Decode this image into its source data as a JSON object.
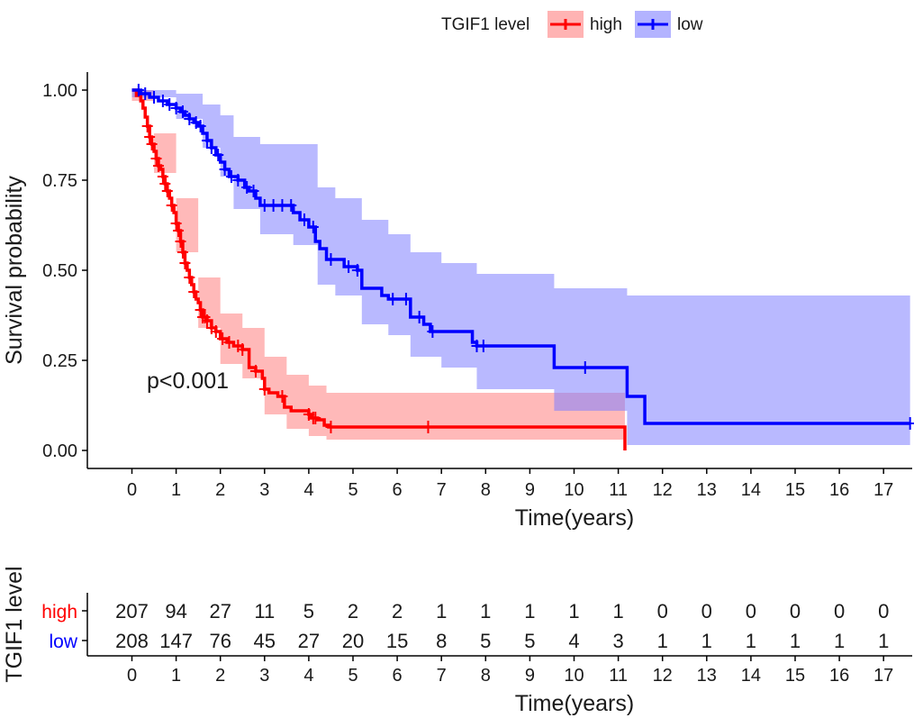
{
  "legend": {
    "title": "TGIF1 level",
    "items": [
      {
        "label": "high",
        "color": "#ff0000"
      },
      {
        "label": "low",
        "color": "#0000ff"
      }
    ]
  },
  "annotation": "p<0.001",
  "chart_data": [
    {
      "type": "line",
      "subtype": "kaplan-meier",
      "xlabel": "Time(years)",
      "ylabel": "Survival probability",
      "xlim": [
        0,
        17.6
      ],
      "ylim": [
        0,
        1
      ],
      "x_ticks": [
        0,
        1,
        2,
        3,
        4,
        5,
        6,
        7,
        8,
        9,
        10,
        11,
        12,
        13,
        14,
        15,
        16,
        17
      ],
      "y_ticks": [
        "0.00",
        "0.25",
        "0.50",
        "0.75",
        "1.00"
      ],
      "y_tick_values": [
        0,
        0.25,
        0.5,
        0.75,
        1.0
      ],
      "grid": false,
      "legend_position": "top",
      "series": [
        {
          "name": "high",
          "color": "#ff0000",
          "band_color": "#ff8080",
          "steps": [
            [
              0,
              1.0
            ],
            [
              0.1,
              0.985
            ],
            [
              0.2,
              0.97
            ],
            [
              0.25,
              0.95
            ],
            [
              0.3,
              0.925
            ],
            [
              0.35,
              0.9
            ],
            [
              0.4,
              0.87
            ],
            [
              0.45,
              0.85
            ],
            [
              0.5,
              0.83
            ],
            [
              0.55,
              0.81
            ],
            [
              0.6,
              0.79
            ],
            [
              0.65,
              0.78
            ],
            [
              0.7,
              0.76
            ],
            [
              0.75,
              0.74
            ],
            [
              0.8,
              0.72
            ],
            [
              0.85,
              0.7
            ],
            [
              0.9,
              0.68
            ],
            [
              0.95,
              0.66
            ],
            [
              1.0,
              0.63
            ],
            [
              1.05,
              0.61
            ],
            [
              1.1,
              0.58
            ],
            [
              1.15,
              0.55
            ],
            [
              1.2,
              0.52
            ],
            [
              1.25,
              0.5
            ],
            [
              1.3,
              0.48
            ],
            [
              1.35,
              0.46
            ],
            [
              1.4,
              0.44
            ],
            [
              1.45,
              0.42
            ],
            [
              1.5,
              0.41
            ],
            [
              1.55,
              0.39
            ],
            [
              1.6,
              0.37
            ],
            [
              1.7,
              0.36
            ],
            [
              1.8,
              0.34
            ],
            [
              1.9,
              0.33
            ],
            [
              2.0,
              0.31
            ],
            [
              2.15,
              0.3
            ],
            [
              2.3,
              0.29
            ],
            [
              2.5,
              0.28
            ],
            [
              2.65,
              0.23
            ],
            [
              2.8,
              0.22
            ],
            [
              2.95,
              0.2
            ],
            [
              3.0,
              0.17
            ],
            [
              3.1,
              0.16
            ],
            [
              3.3,
              0.15
            ],
            [
              3.45,
              0.12
            ],
            [
              3.6,
              0.11
            ],
            [
              4.0,
              0.1
            ],
            [
              4.05,
              0.09
            ],
            [
              4.2,
              0.085
            ],
            [
              4.35,
              0.07
            ],
            [
              4.45,
              0.065
            ],
            [
              11.15,
              0.0
            ]
          ],
          "upper": [
            [
              0,
              1.0
            ],
            [
              0.5,
              0.88
            ],
            [
              1.0,
              0.7
            ],
            [
              1.5,
              0.48
            ],
            [
              2.0,
              0.38
            ],
            [
              2.5,
              0.34
            ],
            [
              3.0,
              0.26
            ],
            [
              3.5,
              0.21
            ],
            [
              4.0,
              0.18
            ],
            [
              4.4,
              0.16
            ],
            [
              11.15,
              0.16
            ]
          ],
          "lower": [
            [
              0,
              0.97
            ],
            [
              0.5,
              0.77
            ],
            [
              1.0,
              0.55
            ],
            [
              1.5,
              0.34
            ],
            [
              2.0,
              0.24
            ],
            [
              2.5,
              0.2
            ],
            [
              3.0,
              0.1
            ],
            [
              3.5,
              0.06
            ],
            [
              4.0,
              0.04
            ],
            [
              4.4,
              0.03
            ],
            [
              11.15,
              0.03
            ]
          ],
          "censor_times": [
            0.35,
            0.4,
            0.45,
            0.55,
            0.6,
            0.7,
            0.75,
            0.8,
            0.9,
            1.0,
            1.05,
            1.1,
            1.15,
            1.2,
            1.3,
            1.4,
            1.55,
            1.6,
            1.65,
            1.7,
            1.8,
            1.9,
            2.05,
            2.2,
            2.4,
            2.5,
            2.8,
            3.0,
            3.4,
            4.0,
            4.1,
            4.15,
            4.5,
            6.7
          ]
        },
        {
          "name": "low",
          "color": "#0000ff",
          "band_color": "#8080ff",
          "steps": [
            [
              0,
              1.0
            ],
            [
              0.2,
              0.99
            ],
            [
              0.4,
              0.98
            ],
            [
              0.6,
              0.97
            ],
            [
              0.8,
              0.96
            ],
            [
              1.0,
              0.95
            ],
            [
              1.1,
              0.94
            ],
            [
              1.2,
              0.93
            ],
            [
              1.3,
              0.92
            ],
            [
              1.4,
              0.91
            ],
            [
              1.5,
              0.9
            ],
            [
              1.6,
              0.88
            ],
            [
              1.7,
              0.86
            ],
            [
              1.8,
              0.84
            ],
            [
              1.9,
              0.82
            ],
            [
              2.0,
              0.8
            ],
            [
              2.1,
              0.78
            ],
            [
              2.2,
              0.76
            ],
            [
              2.4,
              0.75
            ],
            [
              2.55,
              0.73
            ],
            [
              2.65,
              0.72
            ],
            [
              2.8,
              0.7
            ],
            [
              2.9,
              0.68
            ],
            [
              3.65,
              0.66
            ],
            [
              3.8,
              0.64
            ],
            [
              4.0,
              0.62
            ],
            [
              4.15,
              0.58
            ],
            [
              4.25,
              0.56
            ],
            [
              4.4,
              0.53
            ],
            [
              4.8,
              0.51
            ],
            [
              5.1,
              0.5
            ],
            [
              5.2,
              0.45
            ],
            [
              5.65,
              0.43
            ],
            [
              5.8,
              0.42
            ],
            [
              6.3,
              0.37
            ],
            [
              6.6,
              0.35
            ],
            [
              6.75,
              0.33
            ],
            [
              7.7,
              0.3
            ],
            [
              7.8,
              0.29
            ],
            [
              9.55,
              0.23
            ],
            [
              11.2,
              0.15
            ],
            [
              11.6,
              0.075
            ],
            [
              17.6,
              0.075
            ]
          ],
          "upper": [
            [
              0,
              1.0
            ],
            [
              1.0,
              0.99
            ],
            [
              1.6,
              0.96
            ],
            [
              2.0,
              0.93
            ],
            [
              2.3,
              0.87
            ],
            [
              2.9,
              0.85
            ],
            [
              3.65,
              0.85
            ],
            [
              4.2,
              0.73
            ],
            [
              4.6,
              0.7
            ],
            [
              5.2,
              0.64
            ],
            [
              5.8,
              0.6
            ],
            [
              6.3,
              0.55
            ],
            [
              7.0,
              0.52
            ],
            [
              7.8,
              0.49
            ],
            [
              9.55,
              0.45
            ],
            [
              11.2,
              0.43
            ],
            [
              17.6,
              0.43
            ]
          ],
          "lower": [
            [
              0,
              0.98
            ],
            [
              1.0,
              0.92
            ],
            [
              1.6,
              0.84
            ],
            [
              2.0,
              0.76
            ],
            [
              2.3,
              0.67
            ],
            [
              2.9,
              0.6
            ],
            [
              3.65,
              0.57
            ],
            [
              4.2,
              0.46
            ],
            [
              4.6,
              0.43
            ],
            [
              5.2,
              0.35
            ],
            [
              5.8,
              0.32
            ],
            [
              6.3,
              0.26
            ],
            [
              7.0,
              0.23
            ],
            [
              7.8,
              0.17
            ],
            [
              9.55,
              0.11
            ],
            [
              11.2,
              0.015
            ],
            [
              17.6,
              0.015
            ]
          ],
          "censor_times": [
            0.15,
            0.3,
            0.5,
            0.7,
            0.85,
            1.0,
            1.15,
            1.3,
            1.45,
            1.55,
            1.7,
            1.8,
            1.95,
            2.1,
            2.25,
            2.4,
            2.6,
            2.75,
            3.0,
            3.2,
            3.4,
            3.6,
            3.9,
            4.1,
            4.5,
            4.9,
            5.1,
            5.9,
            6.2,
            6.5,
            6.8,
            7.8,
            7.95,
            10.25,
            17.6
          ]
        }
      ]
    },
    {
      "type": "table",
      "title": "",
      "ylabel": "TGIF1 level",
      "xlabel": "Time(years)",
      "x_ticks": [
        0,
        1,
        2,
        3,
        4,
        5,
        6,
        7,
        8,
        9,
        10,
        11,
        12,
        13,
        14,
        15,
        16,
        17
      ],
      "rows": [
        {
          "name": "high",
          "color": "#ff0000",
          "values": [
            207,
            94,
            27,
            11,
            5,
            2,
            2,
            1,
            1,
            1,
            1,
            1,
            0,
            0,
            0,
            0,
            0,
            0
          ]
        },
        {
          "name": "low",
          "color": "#0000ff",
          "values": [
            208,
            147,
            76,
            45,
            27,
            20,
            15,
            8,
            5,
            5,
            4,
            3,
            1,
            1,
            1,
            1,
            1,
            1
          ]
        }
      ]
    }
  ]
}
